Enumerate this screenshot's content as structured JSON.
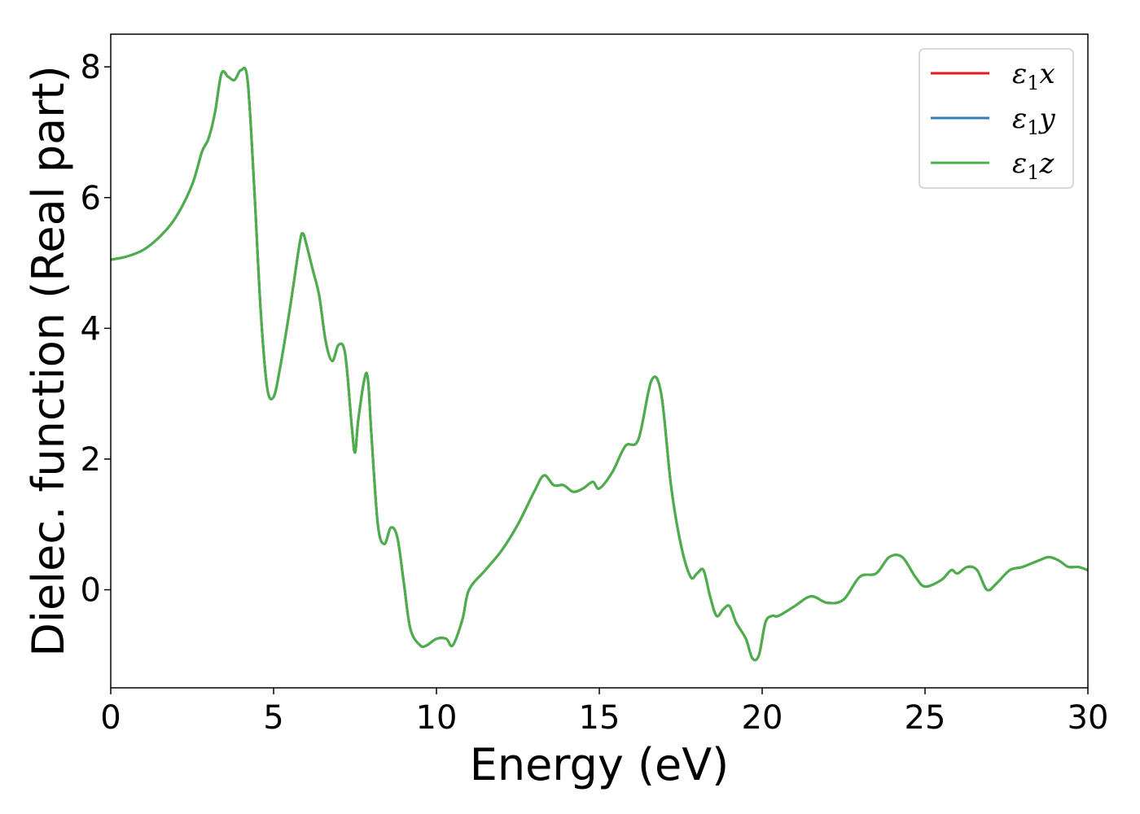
{
  "chart_data": {
    "type": "line",
    "title": "",
    "xlabel": "Energy (eV)",
    "ylabel": "Dielec. function (Real part)",
    "xlim": [
      0,
      30
    ],
    "ylim": [
      -1.5,
      8.5
    ],
    "xticks": [
      "0",
      "5",
      "10",
      "15",
      "20",
      "25",
      "30"
    ],
    "yticks": [
      "0",
      "2",
      "4",
      "6",
      "8"
    ],
    "grid": false,
    "legend_position": "top-right",
    "series": [
      {
        "name": "ε1x",
        "legend": {
          "symbol": "ε",
          "sub": "1",
          "axis": "x"
        },
        "color": "#e41a1c",
        "x": [
          0,
          0.5,
          1,
          1.5,
          2,
          2.5,
          2.8,
          3,
          3.2,
          3.4,
          3.6,
          3.8,
          4,
          4.2,
          4.4,
          4.6,
          4.8,
          5,
          5.2,
          5.5,
          5.8,
          5.9,
          6,
          6.2,
          6.4,
          6.6,
          6.8,
          7,
          7.2,
          7.4,
          7.5,
          7.6,
          7.8,
          7.9,
          8,
          8.2,
          8.4,
          8.6,
          8.8,
          9,
          9.2,
          9.5,
          9.7,
          10,
          10.3,
          10.5,
          10.8,
          11,
          11.5,
          12,
          12.5,
          13,
          13.3,
          13.6,
          13.9,
          14.2,
          14.5,
          14.8,
          15,
          15.4,
          15.8,
          16.2,
          16.6,
          16.9,
          17.2,
          17.5,
          17.8,
          18,
          18.2,
          18.4,
          18.6,
          18.8,
          19,
          19.2,
          19.5,
          19.7,
          19.9,
          20.1,
          20.3,
          20.5,
          21,
          21.5,
          22,
          22.5,
          23,
          23.5,
          23.9,
          24.3,
          24.7,
          25,
          25.5,
          25.8,
          26,
          26.3,
          26.6,
          26.9,
          27.2,
          27.6,
          28,
          28.5,
          28.8,
          29.1,
          29.4,
          29.7,
          30
        ],
        "y": [
          5.05,
          5.1,
          5.2,
          5.4,
          5.7,
          6.2,
          6.7,
          6.9,
          7.3,
          7.9,
          7.85,
          7.8,
          7.95,
          7.8,
          6.2,
          4.3,
          3.1,
          2.95,
          3.4,
          4.3,
          5.3,
          5.45,
          5.3,
          4.9,
          4.5,
          3.8,
          3.5,
          3.75,
          3.6,
          2.5,
          2.1,
          2.6,
          3.25,
          3.2,
          2.4,
          1.0,
          0.7,
          0.95,
          0.8,
          0.1,
          -0.6,
          -0.85,
          -0.85,
          -0.75,
          -0.75,
          -0.85,
          -0.45,
          0.0,
          0.3,
          0.6,
          1.0,
          1.5,
          1.75,
          1.6,
          1.6,
          1.5,
          1.55,
          1.65,
          1.55,
          1.8,
          2.2,
          2.3,
          3.2,
          3.0,
          1.6,
          0.7,
          0.2,
          0.25,
          0.3,
          -0.1,
          -0.4,
          -0.3,
          -0.25,
          -0.5,
          -0.75,
          -1.05,
          -1.0,
          -0.5,
          -0.4,
          -0.4,
          -0.25,
          -0.1,
          -0.2,
          -0.15,
          0.2,
          0.25,
          0.5,
          0.5,
          0.2,
          0.05,
          0.15,
          0.3,
          0.25,
          0.35,
          0.3,
          0.0,
          0.1,
          0.3,
          0.35,
          0.45,
          0.5,
          0.45,
          0.35,
          0.35,
          0.3
        ]
      },
      {
        "name": "ε1y",
        "legend": {
          "symbol": "ε",
          "sub": "1",
          "axis": "y"
        },
        "color": "#377eb8",
        "x": [
          0,
          0.5,
          1,
          1.5,
          2,
          2.5,
          2.8,
          3,
          3.2,
          3.4,
          3.6,
          3.8,
          4,
          4.2,
          4.4,
          4.6,
          4.8,
          5,
          5.2,
          5.5,
          5.8,
          5.9,
          6,
          6.2,
          6.4,
          6.6,
          6.8,
          7,
          7.2,
          7.4,
          7.5,
          7.6,
          7.8,
          7.9,
          8,
          8.2,
          8.4,
          8.6,
          8.8,
          9,
          9.2,
          9.5,
          9.7,
          10,
          10.3,
          10.5,
          10.8,
          11,
          11.5,
          12,
          12.5,
          13,
          13.3,
          13.6,
          13.9,
          14.2,
          14.5,
          14.8,
          15,
          15.4,
          15.8,
          16.2,
          16.6,
          16.9,
          17.2,
          17.5,
          17.8,
          18,
          18.2,
          18.4,
          18.6,
          18.8,
          19,
          19.2,
          19.5,
          19.7,
          19.9,
          20.1,
          20.3,
          20.5,
          21,
          21.5,
          22,
          22.5,
          23,
          23.5,
          23.9,
          24.3,
          24.7,
          25,
          25.5,
          25.8,
          26,
          26.3,
          26.6,
          26.9,
          27.2,
          27.6,
          28,
          28.5,
          28.8,
          29.1,
          29.4,
          29.7,
          30
        ],
        "y": [
          5.05,
          5.1,
          5.2,
          5.4,
          5.7,
          6.2,
          6.7,
          6.9,
          7.3,
          7.9,
          7.85,
          7.8,
          7.95,
          7.8,
          6.2,
          4.3,
          3.1,
          2.95,
          3.4,
          4.3,
          5.3,
          5.45,
          5.3,
          4.9,
          4.5,
          3.8,
          3.5,
          3.75,
          3.6,
          2.5,
          2.1,
          2.6,
          3.25,
          3.2,
          2.4,
          1.0,
          0.7,
          0.95,
          0.8,
          0.1,
          -0.6,
          -0.85,
          -0.85,
          -0.75,
          -0.75,
          -0.85,
          -0.45,
          0.0,
          0.3,
          0.6,
          1.0,
          1.5,
          1.75,
          1.6,
          1.6,
          1.5,
          1.55,
          1.65,
          1.55,
          1.8,
          2.2,
          2.3,
          3.2,
          3.0,
          1.6,
          0.7,
          0.2,
          0.25,
          0.3,
          -0.1,
          -0.4,
          -0.3,
          -0.25,
          -0.5,
          -0.75,
          -1.05,
          -1.0,
          -0.5,
          -0.4,
          -0.4,
          -0.25,
          -0.1,
          -0.2,
          -0.15,
          0.2,
          0.25,
          0.5,
          0.5,
          0.2,
          0.05,
          0.15,
          0.3,
          0.25,
          0.35,
          0.3,
          0.0,
          0.1,
          0.3,
          0.35,
          0.45,
          0.5,
          0.45,
          0.35,
          0.35,
          0.3
        ]
      },
      {
        "name": "ε1z",
        "legend": {
          "symbol": "ε",
          "sub": "1",
          "axis": "z"
        },
        "color": "#4daf4a",
        "x": [
          0,
          0.5,
          1,
          1.5,
          2,
          2.5,
          2.8,
          3,
          3.2,
          3.4,
          3.6,
          3.8,
          4,
          4.2,
          4.4,
          4.6,
          4.8,
          5,
          5.2,
          5.5,
          5.8,
          5.9,
          6,
          6.2,
          6.4,
          6.6,
          6.8,
          7,
          7.2,
          7.4,
          7.5,
          7.6,
          7.8,
          7.9,
          8,
          8.2,
          8.4,
          8.6,
          8.8,
          9,
          9.2,
          9.5,
          9.7,
          10,
          10.3,
          10.5,
          10.8,
          11,
          11.5,
          12,
          12.5,
          13,
          13.3,
          13.6,
          13.9,
          14.2,
          14.5,
          14.8,
          15,
          15.4,
          15.8,
          16.2,
          16.6,
          16.9,
          17.2,
          17.5,
          17.8,
          18,
          18.2,
          18.4,
          18.6,
          18.8,
          19,
          19.2,
          19.5,
          19.7,
          19.9,
          20.1,
          20.3,
          20.5,
          21,
          21.5,
          22,
          22.5,
          23,
          23.5,
          23.9,
          24.3,
          24.7,
          25,
          25.5,
          25.8,
          26,
          26.3,
          26.6,
          26.9,
          27.2,
          27.6,
          28,
          28.5,
          28.8,
          29.1,
          29.4,
          29.7,
          30
        ],
        "y": [
          5.05,
          5.1,
          5.2,
          5.4,
          5.7,
          6.2,
          6.7,
          6.9,
          7.3,
          7.9,
          7.85,
          7.8,
          7.95,
          7.8,
          6.2,
          4.3,
          3.1,
          2.95,
          3.4,
          4.3,
          5.3,
          5.45,
          5.3,
          4.9,
          4.5,
          3.8,
          3.5,
          3.75,
          3.6,
          2.5,
          2.1,
          2.6,
          3.25,
          3.2,
          2.4,
          1.0,
          0.7,
          0.95,
          0.8,
          0.1,
          -0.6,
          -0.85,
          -0.85,
          -0.75,
          -0.75,
          -0.85,
          -0.45,
          0.0,
          0.3,
          0.6,
          1.0,
          1.5,
          1.75,
          1.6,
          1.6,
          1.5,
          1.55,
          1.65,
          1.55,
          1.8,
          2.2,
          2.3,
          3.2,
          3.0,
          1.6,
          0.7,
          0.2,
          0.25,
          0.3,
          -0.1,
          -0.4,
          -0.3,
          -0.25,
          -0.5,
          -0.75,
          -1.05,
          -1.0,
          -0.5,
          -0.4,
          -0.4,
          -0.25,
          -0.1,
          -0.2,
          -0.15,
          0.2,
          0.25,
          0.5,
          0.5,
          0.2,
          0.05,
          0.15,
          0.3,
          0.25,
          0.35,
          0.3,
          0.0,
          0.1,
          0.3,
          0.35,
          0.45,
          0.5,
          0.45,
          0.35,
          0.35,
          0.3
        ]
      }
    ]
  }
}
